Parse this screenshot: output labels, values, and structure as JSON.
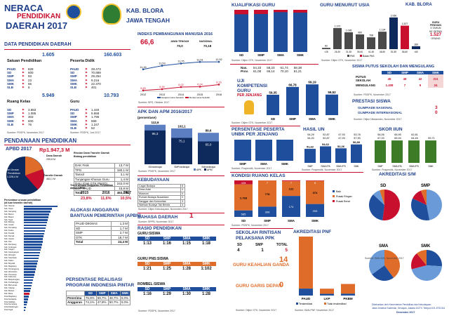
{
  "header": {
    "l1": "NERACA",
    "l2": "PENDIDIKAN",
    "l3": "DAERAH 2017",
    "kab": "KAB. BLORA",
    "prov": "JAWA TENGAH"
  },
  "dp": {
    "title": "DATA PENDIDIKAN DAERAH",
    "sp": {
      "label": "Satuan Pendidikan",
      "total": "1.605",
      "rows": [
        [
          "PAUD",
          "828"
        ],
        [
          "SD",
          "600"
        ],
        [
          "SMP",
          "93"
        ],
        [
          "SMA",
          "23"
        ],
        [
          "SMK",
          "55"
        ],
        [
          "SLB",
          "6"
        ]
      ]
    },
    "pd": {
      "label": "Peserta Didik",
      "total": "160.603",
      "rows": [
        [
          "PAUD",
          "28.473"
        ],
        [
          "SD",
          "70.889"
        ],
        [
          "SMP",
          "29.254"
        ],
        [
          "SMA",
          "9.216"
        ],
        [
          "SMK",
          "22.370"
        ],
        [
          "SLB",
          "401"
        ]
      ]
    },
    "rk": {
      "label": "Ruang Kelas",
      "total": "5.949",
      "rows": [
        [
          "SD",
          "3.883"
        ],
        [
          "SMP",
          "1.085"
        ],
        [
          "SMA",
          "303"
        ],
        [
          "SMK",
          "600"
        ],
        [
          "SLB",
          "76"
        ]
      ]
    },
    "gr": {
      "label": "Guru",
      "total": "10.793",
      "rows": [
        [
          "PAUD",
          "1.440"
        ],
        [
          "SD",
          "5.658"
        ],
        [
          "SMP",
          "1.795"
        ],
        [
          "SMA",
          "599"
        ],
        [
          "SMK",
          "1.247"
        ],
        [
          "SLB",
          "52"
        ]
      ]
    },
    "src1": "Sumber: PDSPK, November 2017",
    "src2": "Sumber: PDSPK, Juni 2017"
  },
  "pendanaan": {
    "title": "PENDANAAN PENDIDIKAN",
    "apbd": "APBD 2017",
    "apbd_val": "Rp1.947,3 M",
    "pie_l1": "Dana Daerah",
    "pie_l2": "255,8 M",
    "pie_l3": "Transfer Daerah",
    "pie_l4": "463,1 M",
    "pie_l5": "Non Urusan",
    "pie_l6": "Pendidikan",
    "pie_l7": "1.228,4 M",
    "rt_title": "Rincian Dana Transfer Daerah",
    "rt_sub": "Bidang pendidikan",
    "rt": [
      [
        "DAK Fisik",
        "13,7 M"
      ],
      [
        "TPG",
        "180,1 M"
      ],
      [
        "Tamsil",
        "3,1 M"
      ],
      [
        "Tunjangan Khusus Guru",
        "1,4 M"
      ],
      [
        "DAU (Gaji GTK PNSD)",
        "242,0 M"
      ],
      [
        "BOP PAUD",
        "15,8 M"
      ],
      [
        "Total",
        "463,1 M"
      ]
    ],
    "pct_title": "Persentase urusan pendidikan",
    "pct_sub": "(di luar transfer daerah)",
    "trend_title": "Trend Alokasi Anggaran Pendidikan",
    "trend_sub": "dalam APBD",
    "trend_years": [
      "2015",
      "2016",
      "2017"
    ],
    "trend_vals": [
      "23,8%",
      "11,6%",
      "10,5%"
    ]
  },
  "kabrows": [
    "Kab. Sleman",
    "Kab. Sinjai",
    "Kab. Sampang",
    "Kab. Bantul",
    "Kab. Banjar",
    "Kab. Tegal",
    "Kab. Batang",
    "Kab. Gresik",
    "Kab. Pemalang",
    "Kab. Kudus",
    "Kab. Kendal",
    "Kab. Demak",
    "Kab. Jepara",
    "Kab. Pati",
    "Kab. Rembang",
    "Kab. Grobogan",
    "Kab. Sragen",
    "Kab. Karanganyar",
    "Kab. Wonogiri",
    "Kab. Sukoharjo",
    "Kab. Klaten",
    "Kab. Boyolali",
    "Kab. Magelang",
    "Kab. Temanggung",
    "Kab. Wonosobo",
    "Kab. Purworejo",
    "Kab. Kebumen",
    "Kab. Banjarnegara",
    "Kab. Purbalingga",
    "Kab. Banyumas",
    "Kab. Cilacap",
    "Kab. Brebes",
    "Kab. Blora",
    "Kota Magelang",
    "Kota Surakarta",
    "Kota Salatiga",
    "Kota Semarang",
    "Kota Pekalongan",
    "Kota Tegal"
  ],
  "kabvals": [
    48,
    40,
    38,
    36,
    35,
    34,
    33,
    32,
    31,
    30,
    29,
    28,
    27,
    27,
    26,
    25,
    24,
    23,
    22,
    21,
    20,
    19,
    18,
    17,
    16,
    15,
    14,
    13,
    12,
    11,
    10,
    9,
    8,
    7,
    6,
    5,
    4,
    3,
    2
  ],
  "apbn": {
    "title": "ALOKASI ANGGARAN",
    "title2": "BANTUAN PEMERINTAH (APBN)",
    "rows": [
      [
        "PAUD-DIKMAS",
        "1,3 M"
      ],
      [
        "SD",
        "1,7 M"
      ],
      [
        "SMP",
        "2,7 M"
      ],
      [
        "GTK",
        "18,7 M"
      ],
      [
        "Total",
        "24,4 M"
      ]
    ]
  },
  "pip": {
    "title": "PERSENTASE REALISASI",
    "title2": "PROGRAM INDONESIA PINTAR",
    "cols": [
      "SD",
      "SMP",
      "SMA",
      "SMK"
    ],
    "r1": [
      "Penerima",
      "75,9%",
      "59,7%",
      "48,7%",
      "0,0%"
    ],
    "r2": [
      "Anggaran",
      "74,1%",
      "47,8%",
      "50,7%",
      "0,0%"
    ]
  },
  "ipm": {
    "title": "INDEKS PEMBANGUNAN MANUSIA 2016",
    "val": "66,6",
    "jt": "JAWA TENGAH",
    "jt_v": "70,0",
    "nas": "NASIONAL",
    "nas_v": "70,18",
    "years": [
      "2012",
      "2013",
      "2014",
      "2015",
      "2016"
    ],
    "hls": [
      "11,16",
      "11,53",
      "11,75",
      "11,91",
      "11,92"
    ],
    "rls": [
      "5,83",
      "5,90",
      "6,02",
      "6,04",
      "6,16"
    ],
    "hls_lbl": "Harapan Lama Sekolah",
    "rls_lbl": "Rerata Lama Sekolah",
    "src": "Sumber: BPS, Oktober 2017"
  },
  "apk": {
    "title": "APK DAN APM 2016/2017",
    "sub": "(persentase)",
    "cats": [
      "SD/sederajat",
      "SMP/sederajat",
      "SM/sederajat"
    ],
    "apk": [
      "112,6",
      "102,1",
      "89,6"
    ],
    "apm": [
      "96,3",
      "75,1",
      "65,0"
    ],
    "lbl_apk": "APK",
    "lbl_apm": "APM",
    "src": "Sumber: PDSPK, November 2017"
  },
  "kebudayaan": {
    "title": "KEBUDAYAAN",
    "rows": [
      [
        "Cagar Budaya",
        "6"
      ],
      [
        "Desa Adat",
        "0"
      ],
      [
        "Museum",
        "0"
      ],
      [
        "Rumah Budaya Nusantara",
        "0"
      ],
      [
        "Sanggar dan Komunitas",
        "3"
      ],
      [
        "Warisan Budaya Tak Benda",
        "4"
      ]
    ],
    "src": "Sumber: Ditjen Kebudayaan, November 2017"
  },
  "bahasa": {
    "title": "BAHASA DAERAH",
    "val": "1",
    "src": "Sumber: BPPB, November 2017"
  },
  "rasio": {
    "title": "RASIO PENDIDIKAN",
    "g": "GURU:SISWA",
    "cols": [
      "SD",
      "SMP",
      "SMA",
      "SMK"
    ],
    "gs": [
      "1:13",
      "1:16",
      "1:15",
      "1:18"
    ],
    "p": "GURU PNS:SISWA",
    "ps": [
      "1:21",
      "1:25",
      "1:28",
      "1:102"
    ],
    "r": "ROMBEL:SISWA",
    "rs": [
      "1:16",
      "1:29",
      "1:30",
      "1:28"
    ],
    "src": "Sumber: PDSPK, November 2017"
  },
  "kualifikasi": {
    "title": "KUALIFIKASI GURU",
    "cats": [
      "SD",
      "SMP",
      "SMA",
      "SMK"
    ],
    "vals": [
      89.4,
      90.1,
      94.5,
      93.4
    ],
    "src": "Sumber: Ditjen GTK, November 2017"
  },
  "usia": {
    "title": "GURU MENURUT USIA",
    "kab": "KAB. BLORA",
    "cats": [
      "<26",
      "26-30",
      "31-35",
      "36-40",
      "41-45",
      "46-50",
      "51-55",
      "56-60",
      ">60"
    ],
    "vals": [
      82,
      1372,
      1095,
      960,
      768,
      1134,
      2060,
      1527,
      189
    ],
    "vals_t": [
      "82",
      "1.372",
      "1.095",
      "960",
      "768",
      "1.134",
      "2.060",
      "1.527",
      "189"
    ],
    "note1": "GURU",
    "note2": "PENSIUN",
    "note3": "5 TAHUN",
    "note4": "KE DEPAN",
    "note5": "1.527",
    "note6": "ORANG",
    "src": "Sumber: Ditjen GTK, November 2017",
    "leg1": "PNS",
    "leg2": "Bukan PNS"
  },
  "ukg": {
    "title": "UJI",
    "title2": "KOMPETENSI",
    "title3": "GURU",
    "title4": "PER JENJANG",
    "cols": [
      "SD",
      "SMP",
      "SMA",
      "SMK"
    ],
    "nas": [
      "54,33",
      "58,23",
      "61,74",
      "58,38"
    ],
    "prov": [
      "61,08",
      "66,14",
      "70,10",
      "61,21"
    ],
    "vals": [
      59.35,
      66.78,
      69.19,
      59.52
    ],
    "vals_t": [
      "59,35",
      "66,78",
      "69,19",
      "59,52"
    ],
    "r1": "Nas.",
    "r2": "Prov.",
    "src": "Sumber: Ditjen GTK, November 2017"
  },
  "putus": {
    "title": "SISWA PUTUS SEKOLAH DAN MENGULANG",
    "cols": [
      "SD",
      "SMP",
      "SMA",
      "SMK"
    ],
    "r1": [
      "PUTUS SEKOLAH",
      "45",
      "49",
      "42",
      "211"
    ],
    "r2": [
      "MENGULANG",
      "1.408",
      "7",
      "9",
      "24"
    ],
    "src": "Sumber: PDSPK, November 2017"
  },
  "prestasi": {
    "title": "PRESTASI SISWA",
    "r1": [
      "OLIMPIADE NASIONAL",
      "3"
    ],
    "r2": [
      "OLIMPIADE INTERNASIONAL",
      "0"
    ],
    "src": "Sumber: Ditjen Dikdasmen, November 2017"
  },
  "unbk": {
    "title": "PERSENTASE PESERTA",
    "title2": "UNBK PER JENJANG",
    "cats": [
      "SMP",
      "SMA",
      "SMK"
    ],
    "vals": [
      100,
      100,
      100
    ],
    "src": "Sumber: Puspendik, November 2017"
  },
  "hasilun": {
    "title": "HASIL UN",
    "nas": [
      "54,29",
      "52,87",
      "47,93",
      "53,78"
    ],
    "prov": [
      "54,20",
      "52,87",
      "47,93",
      "57,90"
    ],
    "cats": [
      "SMP",
      "SMA IPA",
      "SMA IPS",
      "SMK"
    ],
    "vals": [
      51.62,
      54.62,
      52.26,
      56.89
    ],
    "vals_t": [
      "51,62",
      "54,62",
      "52,26",
      "56,89"
    ],
    "note": "2016/2017",
    "src": "Sumber: Puspendik, November 2017"
  },
  "iiun": {
    "title": "SKOR IIUN",
    "nas": [
      "56,06",
      "65,95",
      "62,81"
    ],
    "prov": [
      "67,20",
      "65,94",
      "64,45",
      "59,71"
    ],
    "cats": [
      "SMP",
      "SMA IPA",
      "SMA IPS",
      "SMK"
    ],
    "vals": [
      84,
      84,
      84,
      84
    ],
    "note": "2016/2017",
    "src": "Sumber: Puspendik, November 2017"
  },
  "kondisi": {
    "title": "KONDISI RUANG KELAS",
    "cats": [
      "SD",
      "SMP",
      "SMA",
      "SMK"
    ],
    "baik": [
      "685",
      "308",
      "174",
      "209"
    ],
    "rr": [
      "2.768",
      "778",
      "122",
      "374"
    ],
    "rb": [
      "428",
      "7",
      "7",
      "9"
    ],
    "leg1": "Baik",
    "leg2": "Rusak Ringan",
    "leg3": "Rusak Berat",
    "src": "Sumber: PDSPK, November 2017"
  },
  "sekolah": {
    "title": "SEKOLAH RINTISAN",
    "title2": "PELAKSANA PPK",
    "cols": [
      "SD",
      "SMP",
      "TOTAL"
    ],
    "vals": [
      "4",
      "1",
      "5"
    ],
    "src": "Sumber: Ditjen GTK, November 2017"
  },
  "keahlian": {
    "title": "GURU KEAHLIAN GANDA",
    "val": "14"
  },
  "garis": {
    "title": "GURU GARIS DEPAN",
    "val": "0",
    "src": "Sumber: Ditjen GTK, November 2017"
  },
  "pnf": {
    "title": "AKREDITASI PNF",
    "cats": [
      "PAUD",
      "LKP",
      "PKBM"
    ],
    "t": [
      20,
      1,
      3
    ],
    "tt": [
      150,
      3,
      16
    ],
    "leg1": "Terakreditasi",
    "leg2": "Tidak terakreditasi",
    "src": "Sumber: BAN-PNF, November 2017"
  },
  "akred": {
    "title": "AKREDITASI S/M",
    "sd": "SD",
    "smp": "SMP",
    "sma": "SMA",
    "smk": "SMK",
    "src": "Sumber: BAN-S/M, November 2017"
  },
  "footer": "Dikeluarkan oleh Kementerian Pendidikan dan Kebudayaan",
  "footer2": "Jalan Jenderal Sudirman, Senayan, Jakarta 10270, Telepon 021-5731314",
  "footer3": "Desember 2017",
  "colors": {
    "blue": "#1f4e9c",
    "red": "#c8102e",
    "orange": "#e06c2a",
    "green": "#3e7b27",
    "navy": "#0e2a5c"
  }
}
